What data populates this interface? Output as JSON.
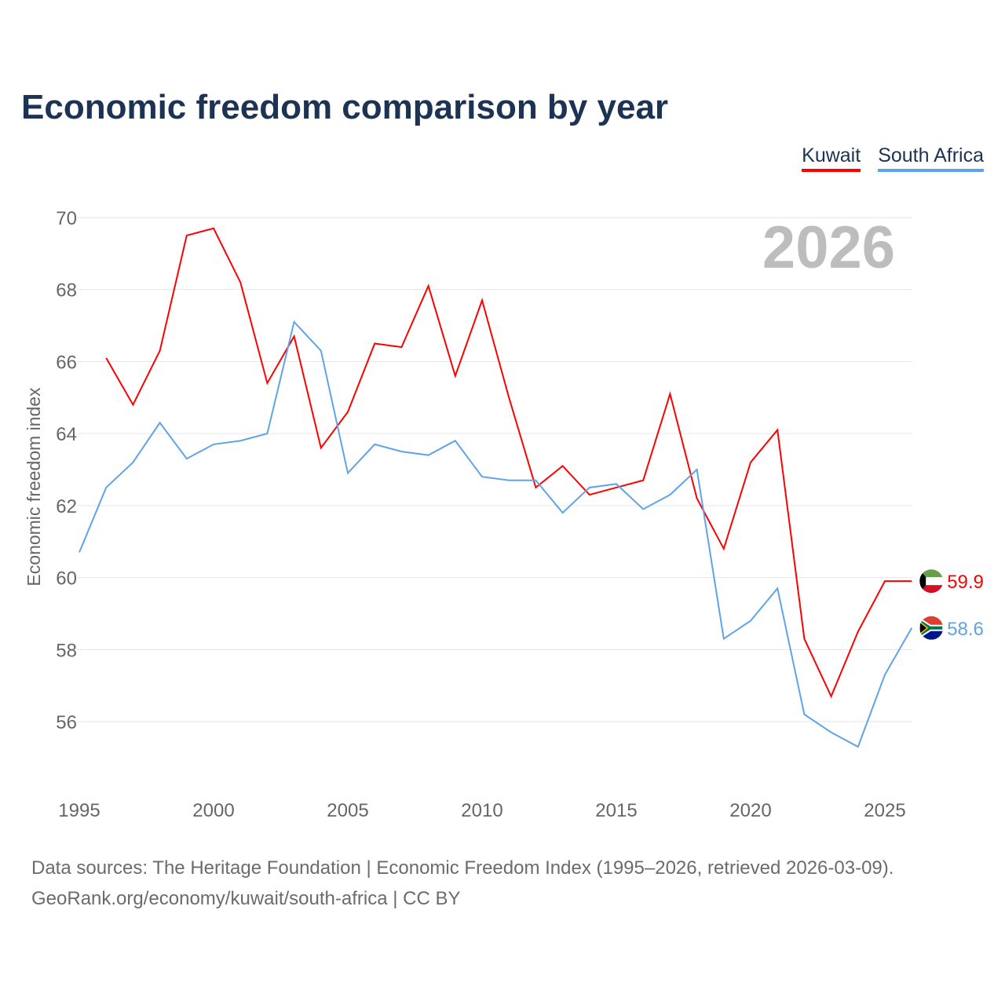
{
  "chart_data": {
    "type": "line",
    "title": "Economic freedom comparison by year",
    "xlabel": "",
    "ylabel": "Economic freedom index",
    "xlim": [
      1995,
      2026
    ],
    "ylim": [
      54,
      70
    ],
    "yticks": [
      56,
      58,
      60,
      62,
      64,
      66,
      68,
      70
    ],
    "xticks": [
      1995,
      2000,
      2005,
      2010,
      2015,
      2020,
      2025
    ],
    "grid": true,
    "legend_position": "top-right",
    "year_label": "2026",
    "series": [
      {
        "name": "Kuwait",
        "color": "#ff0000",
        "end_label": "59.9",
        "x": [
          1996,
          1997,
          1998,
          1999,
          2000,
          2001,
          2002,
          2003,
          2004,
          2005,
          2006,
          2007,
          2008,
          2009,
          2010,
          2011,
          2012,
          2013,
          2014,
          2015,
          2016,
          2017,
          2018,
          2019,
          2020,
          2021,
          2022,
          2023,
          2024,
          2025,
          2026
        ],
        "values": [
          66.1,
          64.8,
          66.3,
          69.5,
          69.7,
          68.2,
          65.4,
          66.7,
          63.6,
          64.6,
          66.5,
          66.4,
          68.1,
          65.6,
          67.7,
          65.0,
          62.5,
          63.1,
          62.3,
          62.5,
          62.7,
          65.1,
          62.2,
          60.8,
          63.2,
          64.1,
          58.3,
          56.7,
          58.5,
          59.9,
          59.9
        ]
      },
      {
        "name": "South Africa",
        "color": "#5fa3e8",
        "end_label": "58.6",
        "x": [
          1995,
          1996,
          1997,
          1998,
          1999,
          2000,
          2001,
          2002,
          2003,
          2004,
          2005,
          2006,
          2007,
          2008,
          2009,
          2010,
          2011,
          2012,
          2013,
          2014,
          2015,
          2016,
          2017,
          2018,
          2019,
          2020,
          2021,
          2022,
          2023,
          2024,
          2025,
          2026
        ],
        "values": [
          60.7,
          62.5,
          63.2,
          64.3,
          63.3,
          63.7,
          63.8,
          64.0,
          67.1,
          66.3,
          62.9,
          63.7,
          63.5,
          63.4,
          63.8,
          62.8,
          62.7,
          62.7,
          61.8,
          62.5,
          62.6,
          61.9,
          62.3,
          63.0,
          58.3,
          58.8,
          59.7,
          56.2,
          55.7,
          55.3,
          57.3,
          58.6
        ]
      }
    ]
  },
  "footer": {
    "line1": "Data sources: The Heritage Foundation | Economic Freedom Index (1995–2026, retrieved 2026-03-09).",
    "line2": "GeoRank.org/economy/kuwait/south-africa | CC BY"
  }
}
